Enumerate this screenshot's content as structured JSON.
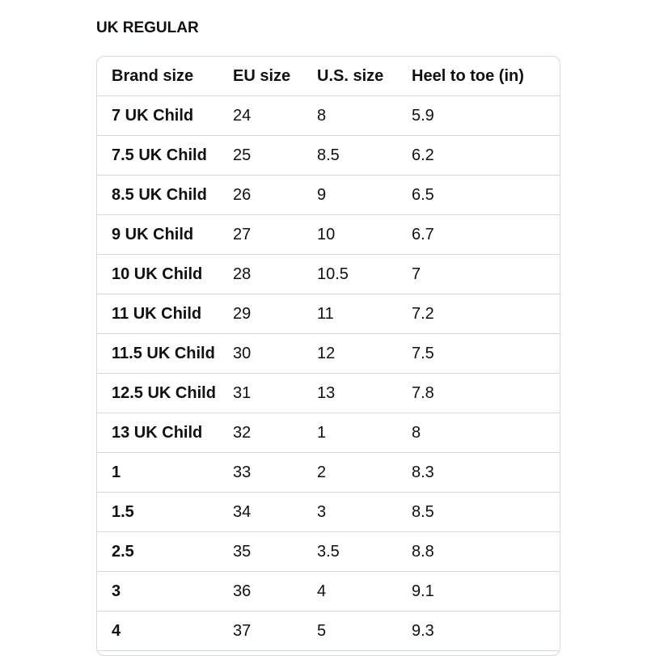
{
  "title": "UK REGULAR",
  "headers": [
    "Brand size",
    "EU size",
    "U.S. size",
    "Heel to toe (in)"
  ],
  "rows": [
    [
      "7 UK Child",
      "24",
      "8",
      "5.9"
    ],
    [
      "7.5 UK Child",
      "25",
      "8.5",
      "6.2"
    ],
    [
      "8.5 UK Child",
      "26",
      "9",
      "6.5"
    ],
    [
      "9 UK Child",
      "27",
      "10",
      "6.7"
    ],
    [
      "10 UK Child",
      "28",
      "10.5",
      "7"
    ],
    [
      "11 UK Child",
      "29",
      "11",
      "7.2"
    ],
    [
      "11.5 UK Child",
      "30",
      "12",
      "7.5"
    ],
    [
      "12.5 UK Child",
      "31",
      "13",
      "7.8"
    ],
    [
      "13 UK Child",
      "32",
      "1",
      "8"
    ],
    [
      "1",
      "33",
      "2",
      "8.3"
    ],
    [
      "1.5",
      "34",
      "3",
      "8.5"
    ],
    [
      "2.5",
      "35",
      "3.5",
      "8.8"
    ],
    [
      "3",
      "36",
      "4",
      "9.1"
    ],
    [
      "4",
      "37",
      "5",
      "9.3"
    ]
  ]
}
